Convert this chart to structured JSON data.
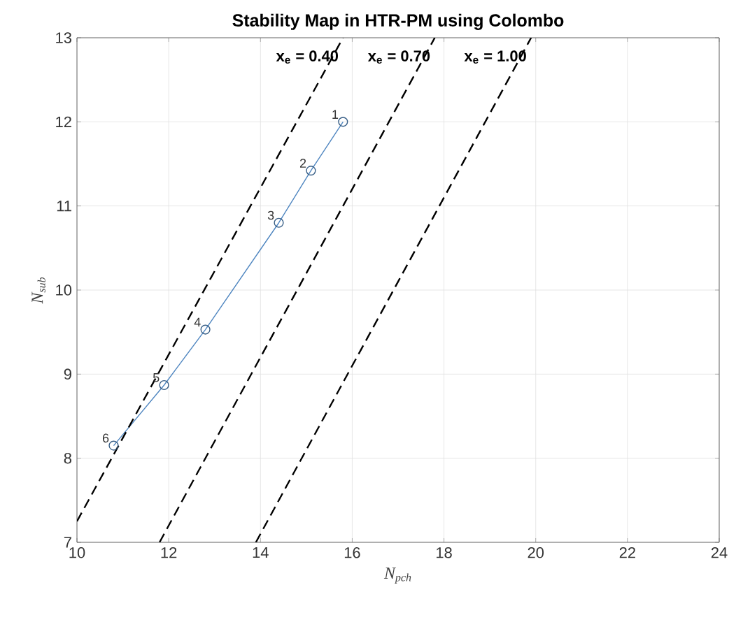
{
  "chart_data": {
    "type": "line",
    "title": "Stability Map in HTR-PM using Colombo",
    "xlabel": "N$_{pch}$",
    "ylabel": "N$_{sub}$",
    "xlim": [
      10,
      24
    ],
    "ylim": [
      7,
      13
    ],
    "xticks": [
      10,
      12,
      14,
      16,
      18,
      20,
      22,
      24
    ],
    "yticks": [
      7,
      8,
      9,
      10,
      11,
      12,
      13
    ],
    "grid": true,
    "series": [
      {
        "color": "#4f86c0",
        "marker": "circle",
        "line_style": "solid",
        "x": [
          15.8,
          15.1,
          14.4,
          12.8,
          11.9,
          10.8
        ],
        "values": [
          12.0,
          11.42,
          10.8,
          9.53,
          8.87,
          8.15
        ]
      },
      {
        "name": "x$_{e}$ = 0.40",
        "color": "#000000",
        "marker": "none",
        "line_style": "dashed",
        "x": [
          10,
          15.8
        ],
        "values": [
          7.25,
          13
        ]
      },
      {
        "name": "x$_{e}$ = 0.70",
        "color": "#000000",
        "marker": "none",
        "line_style": "dashed",
        "x": [
          11.8,
          17.8
        ],
        "values": [
          7,
          13
        ]
      },
      {
        "name": "x$_{e}$ = 1.00",
        "color": "#000000",
        "marker": "none",
        "line_style": "dashed",
        "x": [
          13.9,
          19.9
        ],
        "values": [
          7,
          13
        ]
      }
    ],
    "annotations": [
      {
        "text": "1",
        "x": 15.8,
        "y": 12.0
      },
      {
        "text": "2",
        "x": 15.1,
        "y": 11.42
      },
      {
        "text": "3",
        "x": 14.4,
        "y": 10.8
      },
      {
        "text": "4",
        "x": 12.8,
        "y": 9.53
      },
      {
        "text": "5",
        "x": 11.9,
        "y": 8.87
      },
      {
        "text": "6",
        "x": 10.8,
        "y": 8.15
      }
    ]
  }
}
